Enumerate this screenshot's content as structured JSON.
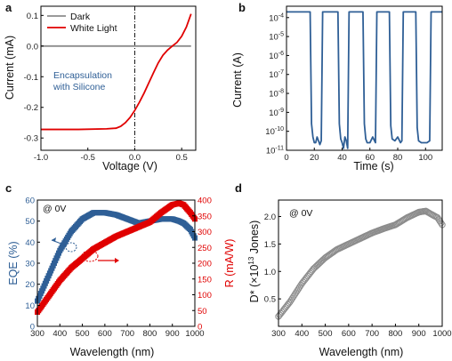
{
  "panels": {
    "a": {
      "label": "a",
      "annotation": "Encapsulation\nwith Silicone"
    },
    "b": {
      "label": "b"
    },
    "c": {
      "label": "c",
      "annotation": "@ 0V"
    },
    "d": {
      "label": "d",
      "annotation": "@ 0V"
    }
  },
  "colors": {
    "blue": "#2f5f96",
    "red": "#e00000",
    "gray": "#8c8c8c",
    "dark": "#8c8c8c"
  },
  "chart_data": [
    {
      "panel": "a",
      "type": "line",
      "xlabel": "Voltage (V)",
      "ylabel": "Current (mA)",
      "xlim": [
        -1.0,
        0.65
      ],
      "ylim": [
        -0.34,
        0.13
      ],
      "xticks": [
        -1.0,
        -0.5,
        0.0,
        0.5
      ],
      "xtick_labels": [
        "-1.0",
        "-0.5",
        "0.0",
        "0.5"
      ],
      "yticks": [
        -0.3,
        -0.2,
        -0.1,
        0.0,
        0.1
      ],
      "ytick_labels": [
        "-0.3",
        "-0.2",
        "-0.1",
        "0.0",
        "0.1"
      ],
      "legend": "top-left",
      "series": [
        {
          "name": "Dark",
          "color": "#8c8c8c",
          "x": [
            -1.0,
            0.6
          ],
          "y": [
            0.0,
            0.0
          ]
        },
        {
          "name": "White Light",
          "color": "#e00000",
          "x": [
            -1.0,
            -0.6,
            -0.3,
            -0.2,
            -0.15,
            -0.1,
            -0.05,
            0.0,
            0.05,
            0.1,
            0.15,
            0.2,
            0.25,
            0.3,
            0.35,
            0.4,
            0.45,
            0.5,
            0.55,
            0.6
          ],
          "y": [
            -0.272,
            -0.272,
            -0.27,
            -0.268,
            -0.262,
            -0.25,
            -0.233,
            -0.21,
            -0.183,
            -0.153,
            -0.12,
            -0.087,
            -0.055,
            -0.03,
            -0.013,
            0.0,
            0.012,
            0.032,
            0.062,
            0.105
          ]
        }
      ],
      "vline_x": 0.0
    },
    {
      "panel": "b",
      "type": "line",
      "xlabel": "Time (s)",
      "ylabel": "Current (A)",
      "xlim": [
        0,
        112
      ],
      "ylog": true,
      "ylim_exp": [
        -11,
        -3.4
      ],
      "xticks": [
        0,
        20,
        40,
        60,
        80,
        100
      ],
      "xtick_labels": [
        "0",
        "20",
        "40",
        "60",
        "80",
        "100"
      ],
      "yticks_exp": [
        -11,
        -10,
        -9,
        -8,
        -7,
        -6,
        -5,
        -4
      ],
      "ytick_labels": [
        "10",
        "10",
        "10",
        "10",
        "10",
        "10",
        "10",
        "10"
      ],
      "ytick_sups": [
        "-11",
        "-10",
        "-9",
        "-8",
        "-7",
        "-6",
        "-5",
        "-4"
      ],
      "series": [
        {
          "color": "#2f5f96",
          "x": [
            0,
            17,
            18,
            19,
            20,
            21,
            22,
            24,
            25,
            26,
            27,
            28,
            37,
            38,
            39,
            40,
            41,
            42,
            43,
            44,
            45,
            46,
            55,
            56,
            57,
            58,
            60,
            62,
            64,
            65,
            74,
            75,
            76,
            78,
            80,
            82,
            83,
            84,
            93,
            94,
            95,
            97,
            99,
            101,
            103,
            104,
            112
          ],
          "y_exp": [
            -3.7,
            -3.7,
            -9.6,
            -10.3,
            -10.6,
            -10.6,
            -10.3,
            -10.7,
            -10.5,
            -3.7,
            -3.7,
            -3.7,
            -3.7,
            -9.6,
            -10.4,
            -10.6,
            -10.9,
            -10.3,
            -10.5,
            -10.9,
            -3.7,
            -3.7,
            -3.7,
            -9.6,
            -10.4,
            -10.6,
            -10.6,
            -10.3,
            -10.6,
            -3.7,
            -3.7,
            -9.7,
            -10.4,
            -10.5,
            -10.3,
            -10.6,
            -10.5,
            -3.7,
            -3.7,
            -9.8,
            -10.5,
            -10.6,
            -10.6,
            -10.6,
            -10.5,
            -3.7,
            -3.7
          ]
        }
      ]
    },
    {
      "panel": "c",
      "type": "scatter",
      "xlabel": "Wavelength (nm)",
      "ylabel": "EQE (%)",
      "ylabel_right": "R (mA/W)",
      "xlim": [
        300,
        1000
      ],
      "ylim": [
        0,
        60
      ],
      "ylim_right": [
        0,
        400
      ],
      "xticks": [
        300,
        400,
        500,
        600,
        700,
        800,
        900,
        1000
      ],
      "xtick_labels": [
        "300",
        "400",
        "500",
        "600",
        "700",
        "800",
        "900",
        "1000"
      ],
      "yticks": [
        0,
        10,
        20,
        30,
        40,
        50,
        60
      ],
      "ytick_labels": [
        "0",
        "10",
        "20",
        "30",
        "40",
        "50",
        "60"
      ],
      "yticks_right": [
        0,
        50,
        100,
        150,
        200,
        250,
        300,
        350,
        400
      ],
      "ytick_labels_right": [
        "0",
        "50",
        "100",
        "150",
        "200",
        "250",
        "300",
        "350",
        "400"
      ],
      "series": [
        {
          "name": "EQE (%)",
          "axis": "left",
          "color": "#2f5f96",
          "x": [
            300,
            350,
            400,
            450,
            500,
            550,
            600,
            650,
            700,
            750,
            800,
            850,
            900,
            930,
            950,
            980,
            1000
          ],
          "y": [
            12,
            24,
            36,
            45,
            51,
            54,
            54,
            53,
            51,
            49,
            50,
            51,
            51,
            50,
            49,
            46,
            42
          ]
        },
        {
          "name": "R (mA/W)",
          "axis": "right",
          "color": "#e00000",
          "x": [
            300,
            350,
            400,
            450,
            500,
            550,
            600,
            650,
            700,
            750,
            800,
            850,
            900,
            930,
            950,
            980,
            1000
          ],
          "y": [
            45,
            95,
            145,
            185,
            215,
            245,
            265,
            285,
            300,
            315,
            330,
            360,
            385,
            390,
            385,
            360,
            340
          ]
        }
      ]
    },
    {
      "panel": "d",
      "type": "scatter",
      "xlabel": "Wavelength (nm)",
      "ylabel": "D* (×10",
      "ylabel_sup": "13",
      "ylabel_tail": " Jones)",
      "xlim": [
        300,
        1000
      ],
      "ylim": [
        0,
        2.3
      ],
      "xticks": [
        300,
        400,
        500,
        600,
        700,
        800,
        900,
        1000
      ],
      "xtick_labels": [
        "300",
        "400",
        "500",
        "600",
        "700",
        "800",
        "900",
        "1000"
      ],
      "yticks": [
        0.5,
        1.0,
        1.5,
        2.0
      ],
      "ytick_labels": [
        "0.5",
        "1.0",
        "1.5",
        "2.0"
      ],
      "series": [
        {
          "color": "#8c8c8c",
          "x": [
            300,
            350,
            400,
            450,
            500,
            550,
            600,
            650,
            700,
            750,
            800,
            850,
            900,
            930,
            950,
            980,
            1000
          ],
          "y": [
            0.18,
            0.45,
            0.78,
            1.05,
            1.25,
            1.4,
            1.5,
            1.6,
            1.7,
            1.78,
            1.85,
            1.98,
            2.08,
            2.1,
            2.05,
            1.98,
            1.85
          ]
        }
      ]
    }
  ]
}
